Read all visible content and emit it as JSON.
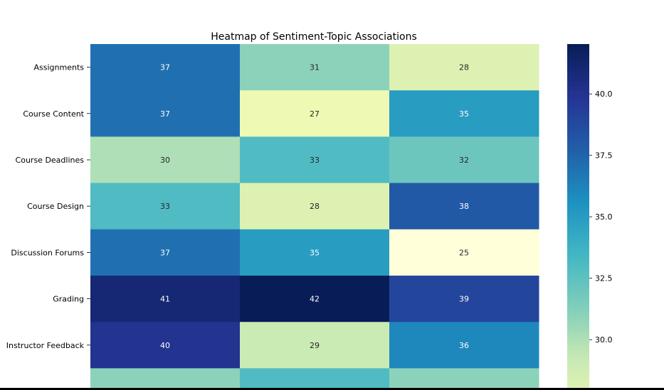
{
  "chart_data": {
    "type": "heatmap",
    "title": "Heatmap of Sentiment-Topic Associations",
    "xlabel": "",
    "ylabel": "",
    "rows": [
      "Assignments",
      "Course Content",
      "Course Deadlines",
      "Course Design",
      "Discussion Forums",
      "Grading",
      "Instructor Feedback"
    ],
    "columns": [
      "",
      "",
      ""
    ],
    "values": [
      [
        37,
        31,
        28
      ],
      [
        37,
        27,
        35
      ],
      [
        30,
        33,
        32
      ],
      [
        33,
        28,
        38
      ],
      [
        37,
        35,
        25
      ],
      [
        41,
        42,
        39
      ],
      [
        40,
        29,
        36
      ]
    ],
    "partial_next_row": [
      31,
      33,
      31
    ],
    "colormap": "YlGnBu",
    "color_range": [
      25,
      42
    ],
    "colorbar_ticks": [
      "40.0",
      "37.5",
      "35.0",
      "32.5",
      "30.0"
    ],
    "colorbar_tick_values": [
      40.0,
      37.5,
      35.0,
      32.5,
      30.0
    ]
  }
}
